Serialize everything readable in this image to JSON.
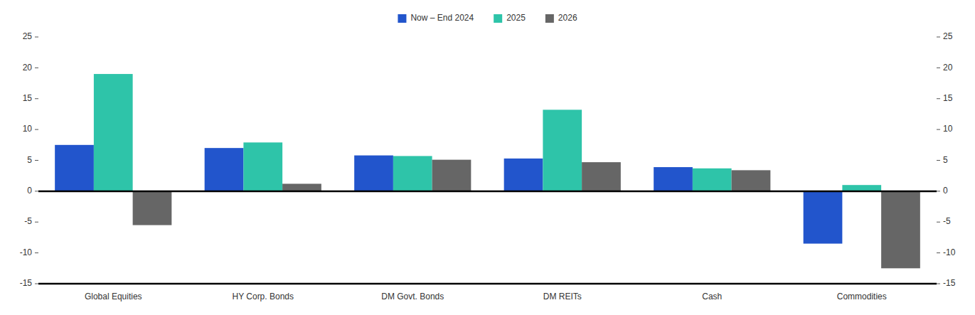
{
  "chart_data": {
    "type": "bar",
    "categories": [
      "Global Equities",
      "HY Corp. Bonds",
      "DM Govt. Bonds",
      "DM REITs",
      "Cash",
      "Commodities"
    ],
    "series": [
      {
        "name": "Now – End 2024",
        "color": "#2255cc",
        "values": [
          7.5,
          7.0,
          5.8,
          5.3,
          3.9,
          -8.5
        ]
      },
      {
        "name": "2025",
        "color": "#2ec4a9",
        "values": [
          19.0,
          7.9,
          5.7,
          13.2,
          3.7,
          1.0
        ]
      },
      {
        "name": "2026",
        "color": "#666666",
        "values": [
          -5.5,
          1.2,
          5.1,
          4.7,
          3.4,
          -12.5
        ]
      }
    ],
    "ylim": [
      -15,
      25
    ],
    "yticks": [
      -15,
      -10,
      -5,
      0,
      5,
      10,
      15,
      20,
      25
    ],
    "y2lim": [
      -15,
      25
    ],
    "y2ticks": [
      -15,
      -10,
      -5,
      0,
      5,
      10,
      15,
      20,
      25
    ],
    "grid": false,
    "legend": "top"
  }
}
